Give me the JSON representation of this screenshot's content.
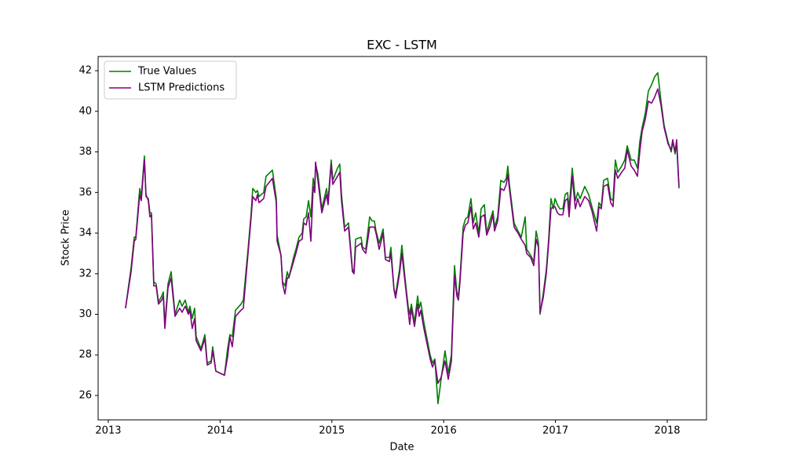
{
  "chart_data": {
    "type": "line",
    "title": "EXC - LSTM",
    "xlabel": "Date",
    "ylabel": "Stock Price",
    "x": [
      2013.154,
      2013.204,
      2013.232,
      2013.246,
      2013.281,
      2013.295,
      2013.323,
      2013.337,
      2013.358,
      2013.372,
      2013.386,
      2013.407,
      2013.428,
      2013.449,
      2013.478,
      2013.492,
      2013.506,
      2013.534,
      2013.562,
      2013.597,
      2013.639,
      2013.66,
      2013.688,
      2013.716,
      2013.73,
      2013.751,
      2013.772,
      2013.786,
      2013.829,
      2013.864,
      2013.885,
      2013.92,
      2013.934,
      2013.962,
      2014.039,
      2014.067,
      2014.088,
      2014.109,
      2014.138,
      2014.187,
      2014.208,
      2014.25,
      2014.278,
      2014.292,
      2014.32,
      2014.334,
      2014.348,
      2014.39,
      2014.411,
      2014.468,
      2014.503,
      2014.51,
      2014.545,
      2014.559,
      2014.58,
      2014.601,
      2014.615,
      2014.657,
      2014.678,
      2014.706,
      2014.734,
      2014.748,
      2014.77,
      2014.791,
      2014.812,
      2014.833,
      2014.847,
      2014.854,
      2014.875,
      2014.91,
      2014.952,
      2014.966,
      2014.994,
      2015.008,
      2015.05,
      2015.071,
      2015.086,
      2015.114,
      2015.149,
      2015.184,
      2015.198,
      2015.212,
      2015.261,
      2015.275,
      2015.303,
      2015.338,
      2015.359,
      2015.38,
      2015.395,
      2015.423,
      2015.458,
      2015.479,
      2015.514,
      2015.528,
      2015.556,
      2015.57,
      2015.605,
      2015.626,
      2015.654,
      2015.682,
      2015.696,
      2015.711,
      2015.739,
      2015.767,
      2015.781,
      2015.795,
      2015.823,
      2015.879,
      2015.9,
      2015.921,
      2015.949,
      2015.977,
      2016.012,
      2016.041,
      2016.069,
      2016.097,
      2016.118,
      2016.132,
      2016.146,
      2016.174,
      2016.195,
      2016.216,
      2016.244,
      2016.265,
      2016.286,
      2016.314,
      2016.335,
      2016.364,
      2016.385,
      2016.413,
      2016.441,
      2016.455,
      2016.483,
      2016.511,
      2016.539,
      2016.56,
      2016.574,
      2016.588,
      2016.63,
      2016.665,
      2016.694,
      2016.729,
      2016.743,
      2016.778,
      2016.806,
      2016.827,
      2016.848,
      2016.862,
      2016.89,
      2016.918,
      2016.939,
      2016.96,
      2016.981,
      2016.996,
      2017.017,
      2017.038,
      2017.066,
      2017.087,
      2017.108,
      2017.122,
      2017.15,
      2017.178,
      2017.199,
      2017.22,
      2017.262,
      2017.297,
      2017.326,
      2017.368,
      2017.389,
      2017.41,
      2017.431,
      2017.466,
      2017.494,
      2017.515,
      2017.536,
      2017.557,
      2017.592,
      2017.62,
      2017.642,
      2017.677,
      2017.705,
      2017.733,
      2017.754,
      2017.775,
      2017.803,
      2017.831,
      2017.859,
      2017.887,
      2017.915,
      2017.944,
      2017.972,
      2018.007,
      2018.035,
      2018.049,
      2018.07,
      2018.084,
      2018.105
    ],
    "series": [
      {
        "name": "True Values",
        "color": "#008000",
        "values": [
          30.3,
          32.3,
          33.8,
          33.8,
          36.2,
          35.8,
          37.8,
          35.8,
          35.7,
          35.0,
          35.0,
          31.6,
          31.5,
          30.6,
          30.9,
          31.1,
          29.5,
          31.5,
          32.1,
          30.0,
          30.7,
          30.4,
          30.7,
          30.1,
          30.4,
          29.8,
          30.3,
          28.9,
          28.3,
          29.0,
          27.6,
          27.7,
          28.4,
          27.2,
          27.0,
          28.3,
          29.0,
          28.9,
          30.2,
          30.5,
          30.7,
          33.2,
          35.0,
          36.2,
          36.0,
          36.1,
          35.8,
          36.0,
          36.8,
          37.1,
          35.7,
          33.9,
          32.9,
          31.6,
          31.4,
          32.1,
          31.8,
          32.8,
          33.2,
          33.8,
          34.0,
          34.7,
          34.8,
          35.6,
          34.8,
          36.7,
          36.2,
          37.4,
          36.9,
          35.2,
          36.2,
          35.6,
          37.6,
          36.6,
          37.2,
          37.4,
          35.9,
          34.3,
          34.5,
          32.2,
          32.1,
          33.7,
          33.8,
          33.3,
          33.2,
          34.8,
          34.6,
          34.6,
          34.1,
          33.5,
          34.2,
          32.8,
          32.8,
          33.3,
          31.2,
          31.0,
          32.2,
          33.4,
          31.8,
          30.4,
          30.0,
          30.5,
          29.6,
          30.9,
          30.3,
          30.6,
          29.6,
          28.0,
          27.6,
          27.8,
          25.6,
          26.8,
          28.2,
          27.1,
          28.0,
          32.4,
          31.1,
          30.9,
          31.8,
          34.3,
          34.7,
          34.8,
          35.7,
          34.5,
          35.0,
          34.0,
          35.2,
          35.4,
          34.0,
          34.6,
          35.1,
          34.3,
          34.8,
          36.6,
          36.5,
          36.7,
          37.3,
          36.4,
          34.5,
          34.1,
          33.8,
          34.8,
          33.2,
          32.9,
          32.6,
          34.1,
          33.5,
          30.0,
          31.0,
          32.2,
          33.7,
          35.7,
          35.2,
          35.7,
          35.4,
          35.2,
          35.2,
          35.9,
          36.0,
          35.2,
          37.2,
          35.6,
          36.0,
          35.7,
          36.3,
          35.9,
          35.3,
          34.5,
          35.5,
          35.3,
          36.6,
          36.7,
          35.7,
          35.6,
          37.6,
          37.0,
          37.3,
          37.6,
          38.3,
          37.6,
          37.6,
          37.2,
          38.5,
          39.2,
          39.9,
          41.0,
          41.3,
          41.7,
          41.9,
          40.5,
          39.3,
          38.5,
          38.0,
          38.5,
          37.9,
          38.4,
          36.2
        ]
      },
      {
        "name": "LSTM Predictions",
        "color": "#800080",
        "values": [
          30.3,
          32.1,
          33.6,
          33.7,
          35.9,
          35.6,
          37.6,
          35.9,
          35.6,
          34.8,
          34.9,
          31.4,
          31.4,
          30.5,
          30.7,
          30.9,
          29.3,
          31.3,
          31.8,
          29.9,
          30.3,
          30.1,
          30.4,
          30.0,
          30.2,
          29.3,
          29.8,
          28.7,
          28.2,
          28.8,
          27.5,
          27.6,
          28.2,
          27.2,
          27.0,
          27.9,
          28.9,
          28.4,
          29.9,
          30.2,
          30.3,
          33.0,
          34.8,
          35.8,
          35.6,
          35.9,
          35.5,
          35.7,
          36.3,
          36.7,
          35.5,
          33.6,
          32.9,
          31.5,
          31.0,
          31.8,
          31.8,
          32.6,
          33.0,
          33.6,
          33.7,
          34.5,
          34.4,
          35.0,
          33.6,
          36.3,
          36.0,
          37.5,
          36.6,
          35.0,
          35.9,
          35.4,
          37.4,
          36.4,
          36.8,
          37.0,
          35.6,
          34.1,
          34.3,
          32.1,
          32.0,
          33.3,
          33.5,
          33.2,
          33.0,
          34.3,
          34.3,
          34.3,
          34.0,
          33.2,
          34.0,
          32.7,
          32.6,
          33.0,
          31.2,
          30.8,
          32.0,
          33.0,
          31.6,
          30.2,
          29.5,
          30.3,
          29.4,
          30.5,
          29.9,
          30.2,
          29.3,
          27.8,
          27.4,
          27.7,
          26.6,
          26.9,
          27.7,
          26.8,
          27.7,
          31.9,
          30.9,
          30.7,
          31.6,
          34.0,
          34.4,
          34.5,
          35.3,
          34.2,
          34.5,
          33.8,
          34.8,
          34.9,
          33.9,
          34.3,
          34.9,
          34.1,
          34.6,
          36.2,
          36.1,
          36.4,
          36.9,
          36.2,
          34.3,
          34.0,
          33.7,
          33.4,
          33.0,
          32.8,
          32.4,
          33.7,
          33.3,
          30.1,
          30.8,
          32.0,
          33.5,
          35.2,
          35.3,
          35.3,
          35.0,
          34.9,
          34.9,
          35.6,
          35.7,
          34.8,
          36.8,
          35.2,
          35.7,
          35.3,
          35.8,
          35.6,
          35.1,
          34.1,
          35.3,
          35.2,
          36.3,
          36.4,
          35.5,
          35.3,
          37.1,
          36.7,
          37.0,
          37.2,
          38.1,
          37.3,
          37.1,
          36.8,
          38.0,
          39.0,
          39.6,
          40.5,
          40.4,
          40.7,
          41.1,
          40.3,
          39.2,
          38.4,
          38.1,
          38.6,
          38.0,
          38.6,
          36.3
        ]
      }
    ],
    "xlim": [
      2012.909,
      2018.351
    ],
    "xticks": [
      2013,
      2014,
      2015,
      2016,
      2017,
      2018
    ],
    "ylim": [
      24.8,
      42.7
    ],
    "yticks": [
      26,
      28,
      30,
      32,
      34,
      36,
      38,
      40,
      42
    ],
    "grid": false,
    "legend": "upper left"
  }
}
